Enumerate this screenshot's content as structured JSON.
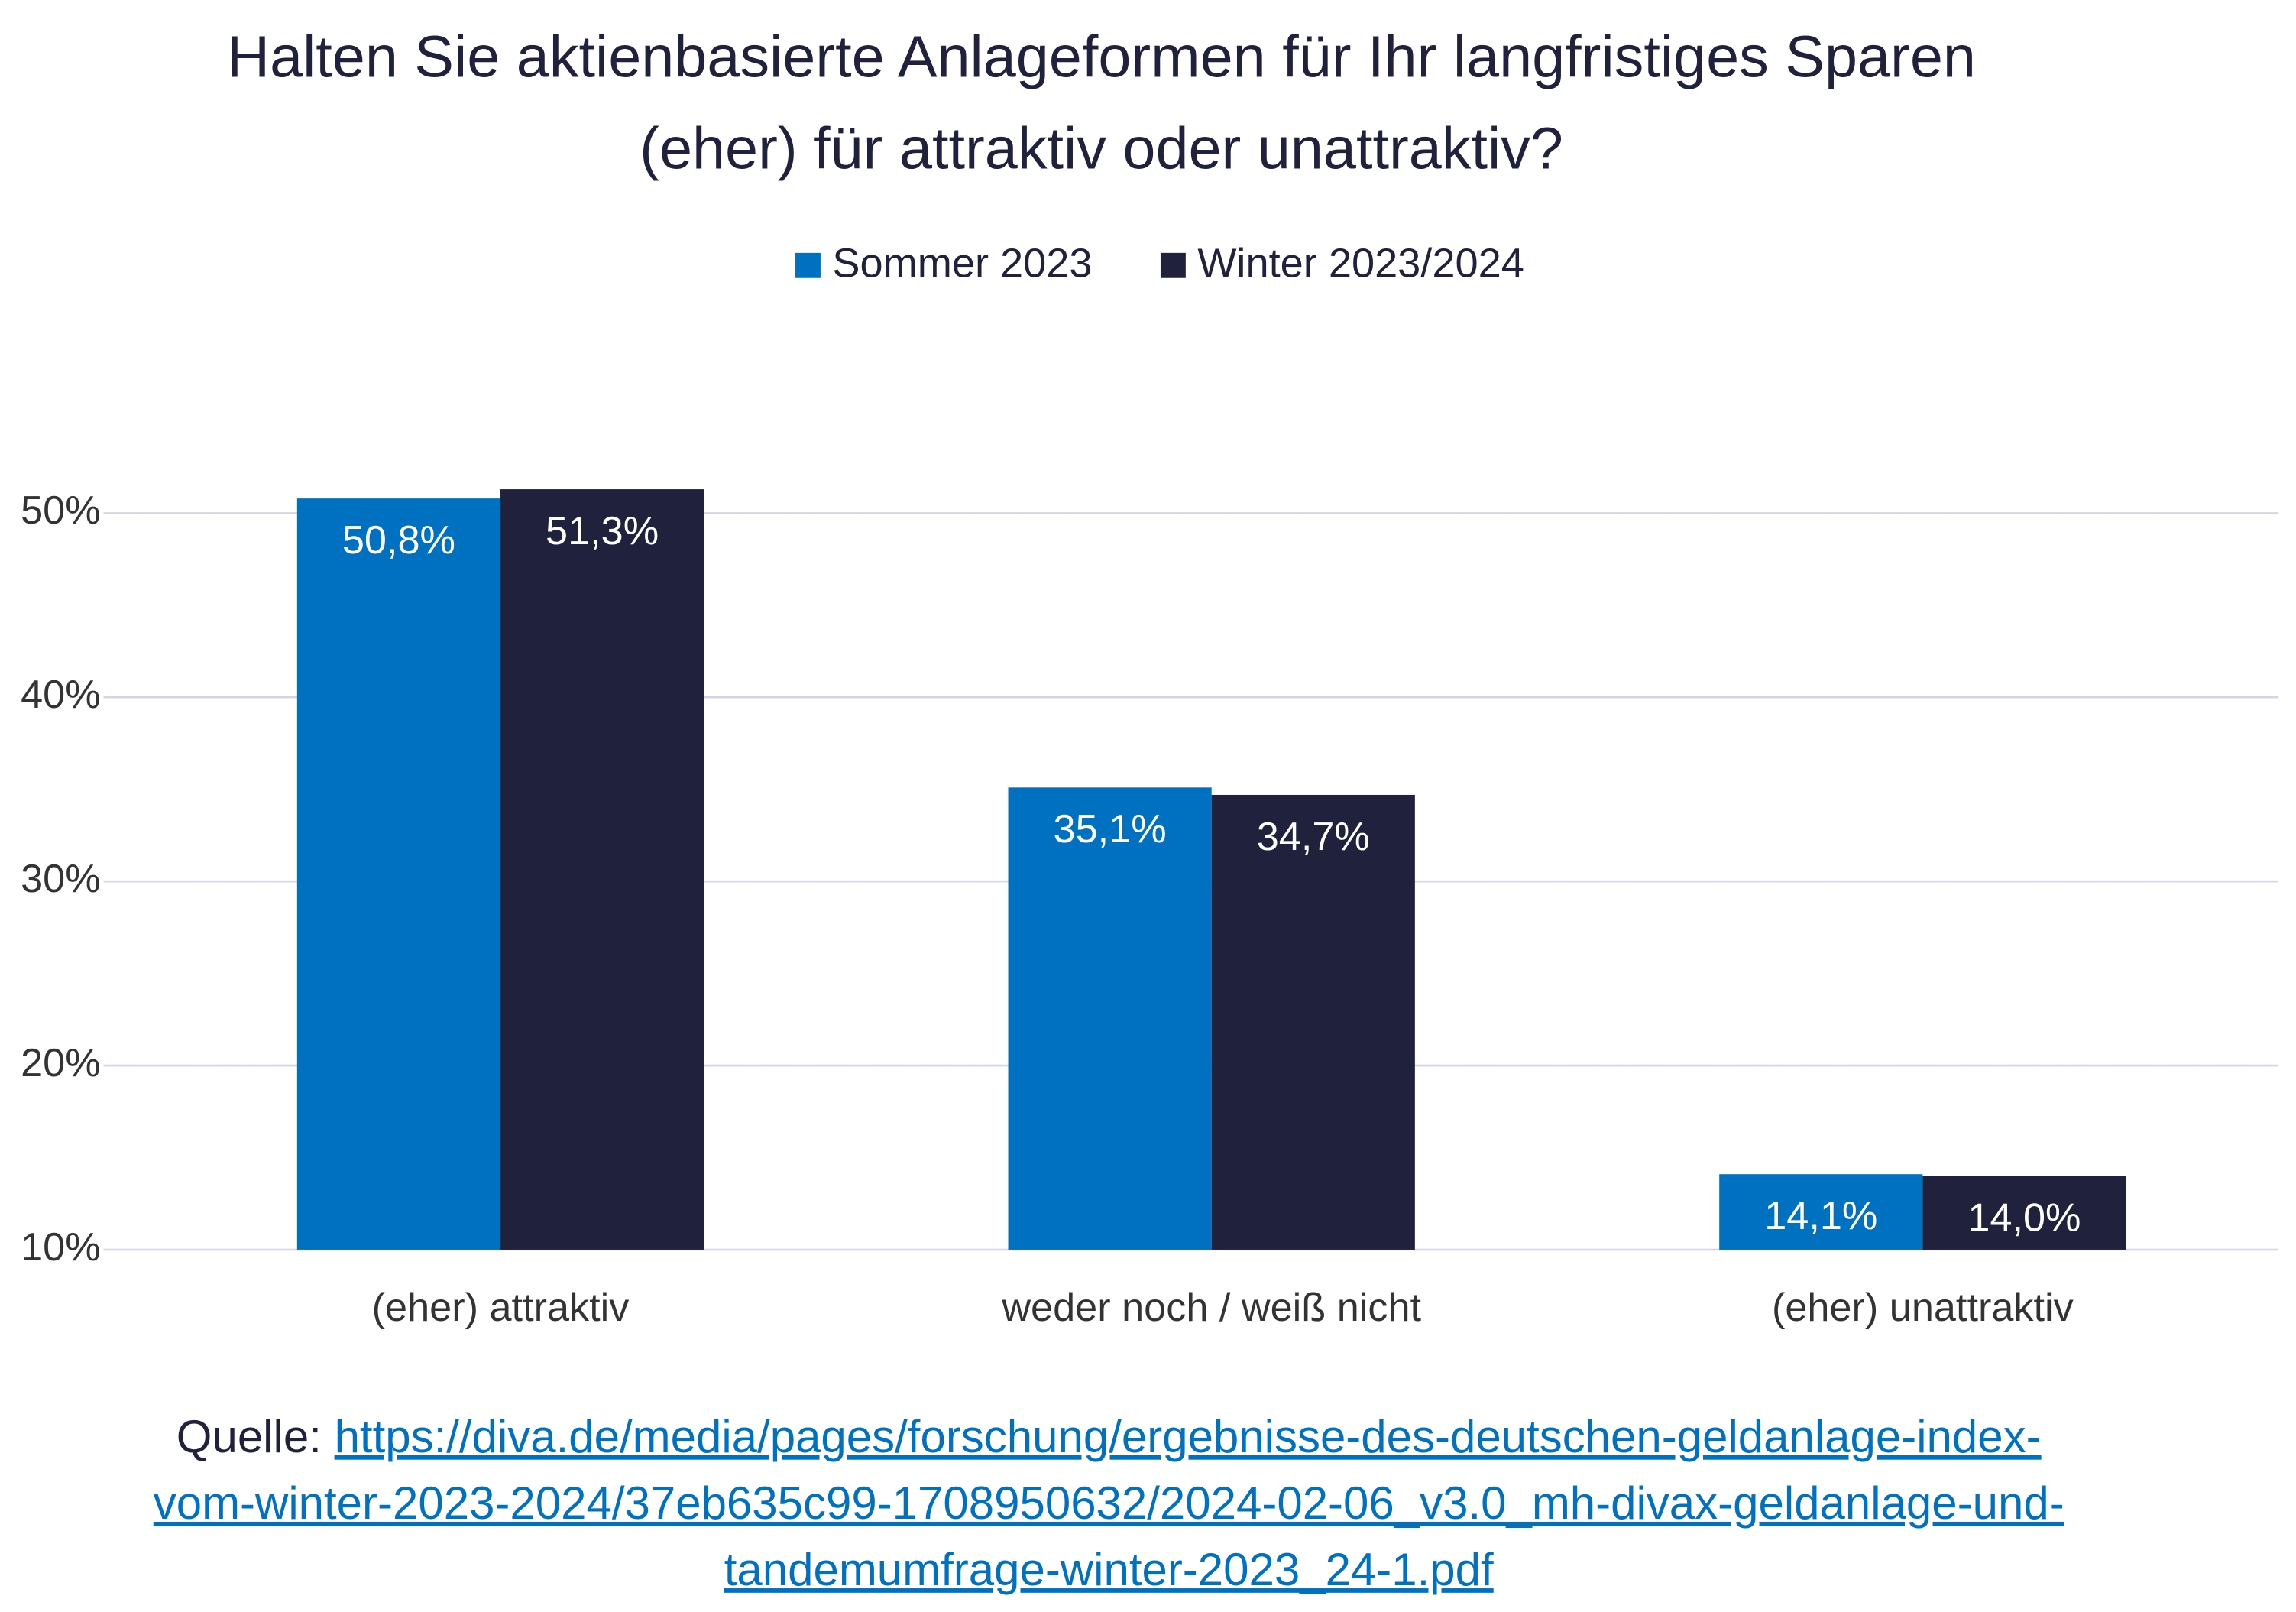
{
  "chart_data": {
    "type": "bar",
    "title": "Halten Sie aktienbasierte Anlageformen für Ihr langfristiges Sparen (eher) für attraktiv oder unattraktiv?",
    "categories": [
      "(eher) attraktiv",
      "weder noch / weiß nicht",
      "(eher) unattraktiv"
    ],
    "series": [
      {
        "name": "Sommer 2023",
        "color": "#0070c0",
        "values": [
          50.8,
          35.1,
          14.1
        ],
        "value_labels": [
          "50,8%",
          "35,1%",
          "14,1%"
        ]
      },
      {
        "name": "Winter 2023/2024",
        "color": "#20223d",
        "values": [
          51.3,
          34.7,
          14.0
        ],
        "value_labels": [
          "51,3%",
          "34,7%",
          "14,0%"
        ]
      }
    ],
    "ylim": [
      10,
      52
    ],
    "yticks": [
      {
        "value": 10,
        "label": "10%"
      },
      {
        "value": 20,
        "label": "20%"
      },
      {
        "value": 30,
        "label": "30%"
      },
      {
        "value": 40,
        "label": "40%"
      },
      {
        "value": 50,
        "label": "50%"
      }
    ],
    "grid": true,
    "legend": "top",
    "source_label": "Quelle:",
    "source_link": "https://diva.de/media/pages/forschung/ergebnisse-des-deutschen-geldanlage-index-vom-winter-2023-2024/37eb635c99-1708950632/2024-02-06_v3.0_mh-divax-geldanlage-und-tandemumfrage-winter-2023_24-1.pdf"
  }
}
